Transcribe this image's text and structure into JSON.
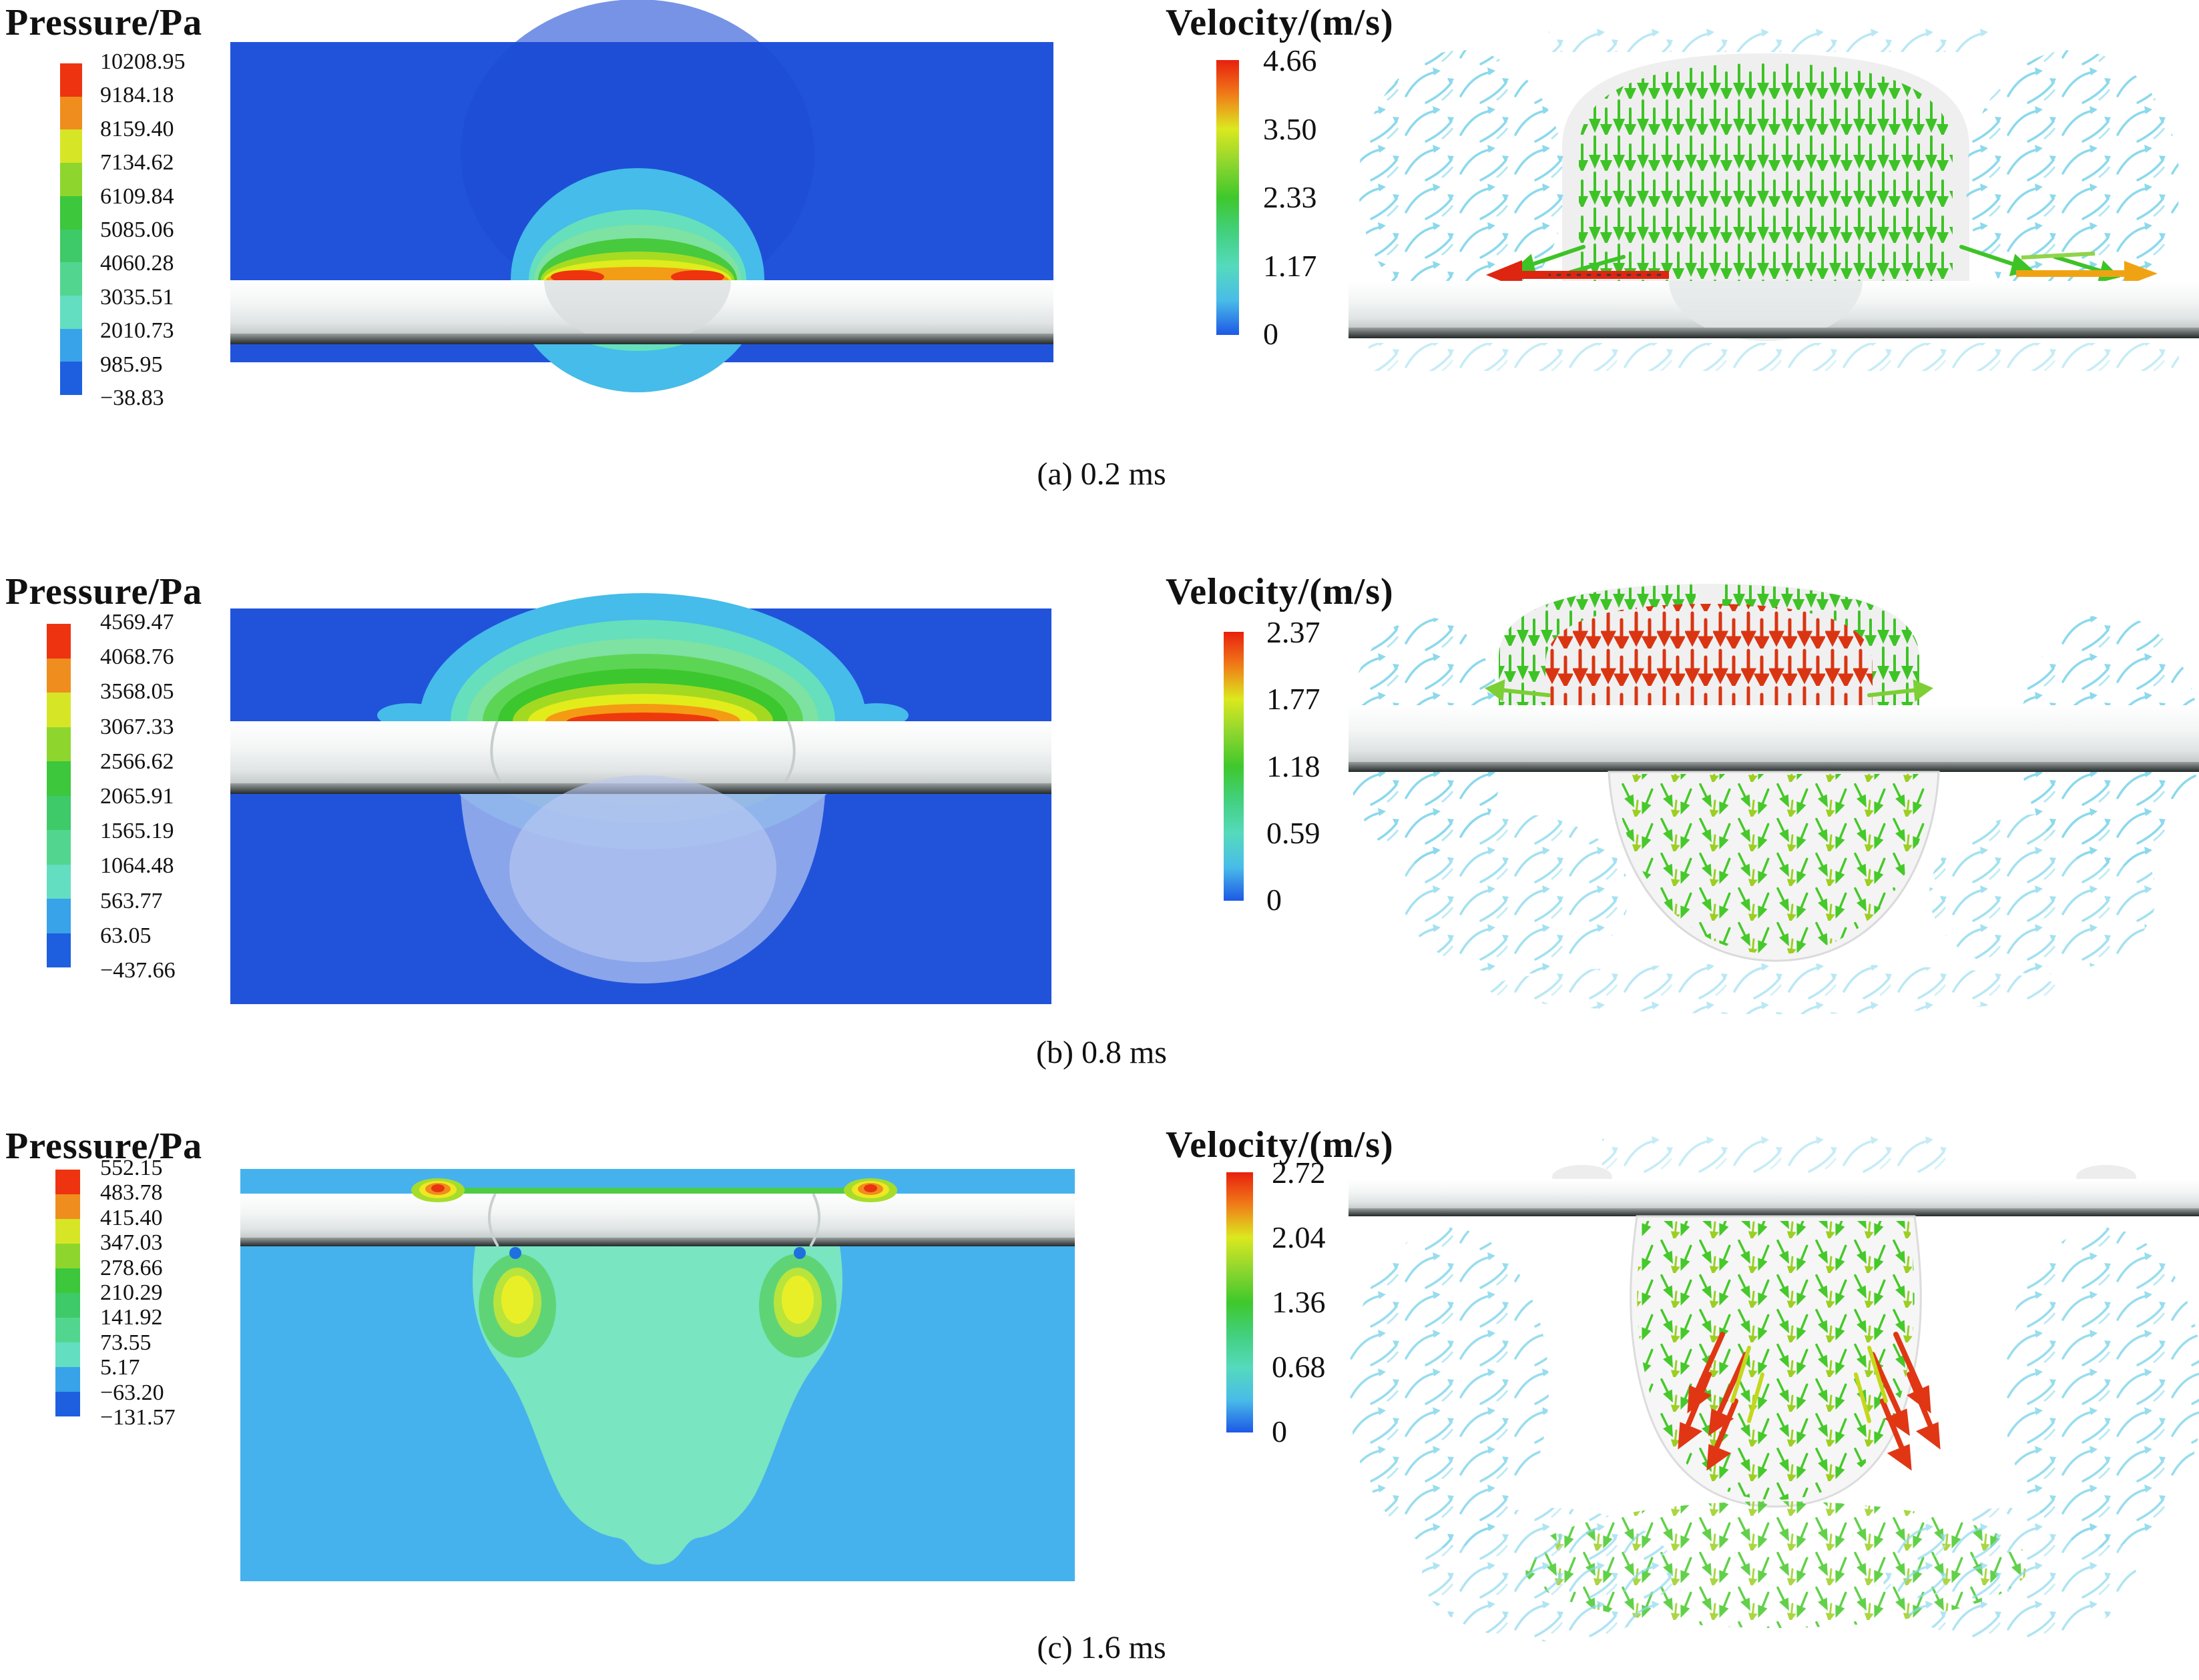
{
  "figure": {
    "pressure_title": "Pressure/Pa",
    "velocity_title": "Velocity/(m/s)",
    "pressure_band_colors": [
      "#ee3310",
      "#ef8e1e",
      "#d6e626",
      "#8ed62e",
      "#3cc73c",
      "#3eca68",
      "#52d68f",
      "#63dec0",
      "#38a3e8",
      "#1e5fe0"
    ],
    "velocity_gradient_colors": [
      "#e8200e",
      "#f07c18",
      "#dce81e",
      "#8ed62e",
      "#3fc82c",
      "#42d07e",
      "#55dabc",
      "#49bce8",
      "#1d58e6"
    ],
    "panels": {
      "a": {
        "caption": "(a) 0.2 ms",
        "pressure_ticks": [
          "10208.95",
          "9184.18",
          "8159.40",
          "7134.62",
          "6109.84",
          "5085.06",
          "4060.28",
          "3035.51",
          "2010.73",
          "985.95",
          "−38.83"
        ],
        "velocity_ticks": [
          "4.66",
          "3.50",
          "2.33",
          "1.17",
          "0"
        ]
      },
      "b": {
        "caption": "(b) 0.8 ms",
        "pressure_ticks": [
          "4569.47",
          "4068.76",
          "3568.05",
          "3067.33",
          "2566.62",
          "2065.91",
          "1565.19",
          "1064.48",
          "563.77",
          "63.05",
          "−437.66"
        ],
        "velocity_ticks": [
          "2.37",
          "1.77",
          "1.18",
          "0.59",
          "0"
        ]
      },
      "c": {
        "caption": "(c) 1.6 ms",
        "pressure_ticks": [
          "552.15",
          "483.78",
          "415.40",
          "347.03",
          "278.66",
          "210.29",
          "141.92",
          "73.55",
          "5.17",
          "−63.20",
          "−131.57"
        ],
        "velocity_ticks": [
          "2.72",
          "2.04",
          "1.36",
          "0.68",
          "0"
        ]
      }
    }
  },
  "chart_data": [
    {
      "type": "heatmap",
      "panel": "a",
      "time_label": "(a) 0.2 ms",
      "quantity": "Pressure",
      "unit": "Pa",
      "legend_position": "left",
      "colorbar_ticks": [
        10208.95,
        9184.18,
        8159.4,
        7134.62,
        6109.84,
        5085.06,
        4060.28,
        3035.51,
        2010.73,
        985.95,
        -38.83
      ],
      "range": [
        -38.83,
        10208.95
      ],
      "description": "Pressure contour field at 0.2 ms: high-pressure dome (red/orange core at surface, cyan outer shell) sitting on top of the workpiece plate, surrounding fluid at low pressure (blue)."
    },
    {
      "type": "vector_field",
      "panel": "a",
      "time_label": "(a) 0.2 ms",
      "quantity": "Velocity",
      "unit": "m/s",
      "legend_position": "left",
      "colorbar_ticks": [
        4.66,
        3.5,
        2.33,
        1.17,
        0
      ],
      "range": [
        0,
        4.66
      ],
      "description": "Velocity vectors at 0.2 ms: dense green downward jet column impinging on the plate, red leftward and orange rightward wall jets at the plate surface, cyan recirculation vortices on both sides."
    },
    {
      "type": "heatmap",
      "panel": "b",
      "time_label": "(b) 0.8 ms",
      "quantity": "Pressure",
      "unit": "Pa",
      "legend_position": "left",
      "colorbar_ticks": [
        4569.47,
        4068.76,
        3568.05,
        3067.33,
        2566.62,
        2065.91,
        1565.19,
        1064.48,
        563.77,
        63.05,
        -437.66
      ],
      "range": [
        -437.66,
        4569.47
      ],
      "description": "Pressure contour field at 0.8 ms: layered pressure mound (red core at plate surface) above the plate, translucent bubble cavity hanging below the plate."
    },
    {
      "type": "vector_field",
      "panel": "b",
      "time_label": "(b) 0.8 ms",
      "quantity": "Velocity",
      "unit": "m/s",
      "legend_position": "left",
      "colorbar_ticks": [
        2.37,
        1.77,
        1.18,
        0.59,
        0
      ],
      "range": [
        0,
        2.37
      ],
      "description": "Velocity vectors at 0.8 ms: red/orange high-speed downward arrows inside the dome above the plate, green arrows on the dome flanks, green radial outflow inside the bubble below the plate, cyan vortices at the sides."
    },
    {
      "type": "heatmap",
      "panel": "c",
      "time_label": "(c) 1.6 ms",
      "quantity": "Pressure",
      "unit": "Pa",
      "legend_position": "left",
      "colorbar_ticks": [
        552.15,
        483.78,
        415.4,
        347.03,
        278.66,
        210.29,
        141.92,
        73.55,
        5.17,
        -63.2,
        -131.57
      ],
      "range": [
        -131.57,
        552.15
      ],
      "description": "Pressure contour field at 1.6 ms: mint-green penetrating cavity below the plate with yellow/green hotspots under the plate corners and small red-orange hotspots on the top surface, sky-blue ambient field."
    },
    {
      "type": "vector_field",
      "panel": "c",
      "time_label": "(c) 1.6 ms",
      "quantity": "Velocity",
      "unit": "m/s",
      "legend_position": "left",
      "colorbar_ticks": [
        2.72,
        2.04,
        1.36,
        0.68,
        0
      ],
      "range": [
        0,
        2.72
      ],
      "description": "Velocity vectors at 1.6 ms: bulb-shaped cavity below the plate with green/yellow arrows radiating downward-outward, red high-speed clusters along the inner left and right cavity walls, cyan vortices surrounding."
    }
  ]
}
